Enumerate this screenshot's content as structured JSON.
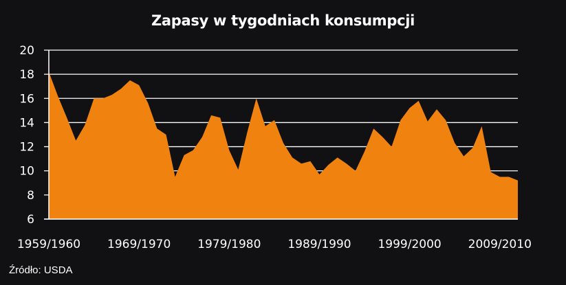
{
  "chart_data": {
    "type": "area",
    "title": "Zapasy w tygodniach konsumpcji",
    "xlabel": "",
    "ylabel": "",
    "ylim": [
      6,
      20
    ],
    "yticks": [
      6,
      8,
      10,
      12,
      14,
      16,
      18,
      20
    ],
    "grid": true,
    "legend": null,
    "x_tick_labels": [
      "1959/1960",
      "1969/1970",
      "1979/1980",
      "1989/1990",
      "1999/2000",
      "2009/2010"
    ],
    "x_tick_indices": [
      0,
      10,
      20,
      30,
      40,
      50
    ],
    "x": [
      "1959/1960",
      "1960/1961",
      "1961/1962",
      "1962/1963",
      "1963/1964",
      "1964/1965",
      "1965/1966",
      "1966/1967",
      "1967/1968",
      "1968/1969",
      "1969/1970",
      "1970/1971",
      "1971/1972",
      "1972/1973",
      "1973/1974",
      "1974/1975",
      "1975/1976",
      "1976/1977",
      "1977/1978",
      "1978/1979",
      "1979/1980",
      "1980/1981",
      "1981/1982",
      "1982/1983",
      "1983/1984",
      "1984/1985",
      "1985/1986",
      "1986/1987",
      "1987/1988",
      "1988/1989",
      "1989/1990",
      "1990/1991",
      "1991/1992",
      "1992/1993",
      "1993/1994",
      "1994/1995",
      "1995/1996",
      "1996/1997",
      "1997/1998",
      "1998/1999",
      "1999/2000",
      "2000/2001",
      "2001/2002",
      "2002/2003",
      "2003/2004",
      "2004/2005",
      "2005/2006",
      "2006/2007",
      "2007/2008",
      "2008/2009",
      "2009/2010",
      "2010/2011",
      "2011/2012"
    ],
    "series": [
      {
        "name": "Zapasy w tygodniach konsumpcji",
        "color": "#F0830F",
        "values": [
          18.2,
          16.2,
          14.4,
          12.5,
          13.8,
          16.0,
          16.0,
          16.3,
          16.8,
          17.5,
          17.1,
          15.6,
          13.5,
          13.0,
          9.5,
          11.3,
          11.7,
          12.8,
          14.6,
          14.4,
          11.7,
          10.1,
          13.2,
          16.0,
          13.7,
          14.2,
          12.3,
          11.1,
          10.6,
          10.8,
          9.7,
          10.5,
          11.1,
          10.6,
          10.0,
          11.6,
          13.5,
          12.8,
          12.0,
          14.2,
          15.2,
          15.8,
          14.1,
          15.1,
          14.2,
          12.3,
          11.2,
          11.9,
          13.7,
          9.9,
          9.5,
          9.5,
          9.2
        ]
      }
    ]
  },
  "source_label": "Źródło: USDA",
  "colors": {
    "background": "#111113",
    "fill": "#F0830F",
    "grid": "#ffffff",
    "text": "#ffffff"
  }
}
